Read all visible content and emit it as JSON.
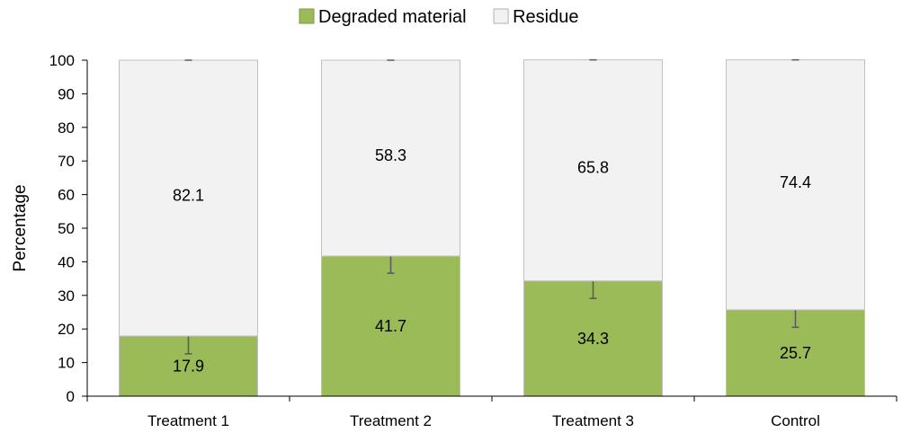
{
  "chart_data": {
    "type": "bar",
    "stacked": true,
    "categories": [
      "Treatment 1",
      "Treatment 2",
      "Treatment 3",
      "Control"
    ],
    "series": [
      {
        "name": "Degraded material",
        "values": [
          17.9,
          41.7,
          34.3,
          25.7
        ],
        "error": [
          5.3,
          5.1,
          5.2,
          5.2
        ],
        "color": "#9bbb59"
      },
      {
        "name": "Residue",
        "values": [
          82.1,
          58.3,
          65.8,
          74.4
        ],
        "color": "#f2f2f2"
      }
    ],
    "ylabel": "Percentage",
    "xlabel": "",
    "ylim": [
      0,
      100
    ],
    "yticks": [
      0,
      10,
      20,
      30,
      40,
      50,
      60,
      70,
      80,
      90,
      100
    ],
    "legend_position": "top",
    "grid": false
  }
}
